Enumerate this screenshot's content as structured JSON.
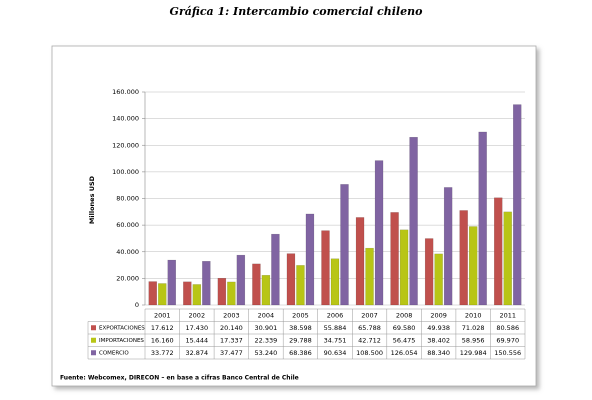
{
  "chart_data": {
    "type": "bar",
    "title": "Gráfica 1: Intercambio comercial chileno",
    "y_label": "Millones USD",
    "source": "Fuente:  Webcomex, DIRECON – en base a cifras Banco Central de Chile",
    "categories": [
      "2001",
      "2002",
      "2003",
      "2004",
      "2005",
      "2006",
      "2007",
      "2008",
      "2009",
      "2010",
      "2011"
    ],
    "series": [
      {
        "name": "EXPORTACIONES",
        "color": "#c0504d",
        "values": [
          17612,
          17430,
          20140,
          30901,
          38598,
          55884,
          65788,
          69580,
          49938,
          71028,
          80586
        ],
        "value_labels": [
          "17.612",
          "17.430",
          "20.140",
          "30.901",
          "38.598",
          "55.884",
          "65.788",
          "69.580",
          "49.938",
          "71.028",
          "80.586"
        ]
      },
      {
        "name": "IMPORTACIONES",
        "color": "#b8c516",
        "values": [
          16160,
          15444,
          17337,
          22339,
          29788,
          34751,
          42712,
          56475,
          38402,
          58956,
          69970
        ],
        "value_labels": [
          "16.160",
          "15.444",
          "17.337",
          "22.339",
          "29.788",
          "34.751",
          "42.712",
          "56.475",
          "38.402",
          "58.956",
          "69.970"
        ]
      },
      {
        "name": "COMERCIO",
        "color": "#8064a2",
        "values": [
          33772,
          32874,
          37477,
          53240,
          68386,
          90634,
          108500,
          126054,
          88340,
          129984,
          150556
        ],
        "value_labels": [
          "33.772",
          "32.874",
          "37.477",
          "53.240",
          "68.386",
          "90.634",
          "108.500",
          "126.054",
          "88.340",
          "129.984",
          "150.556"
        ]
      }
    ],
    "ylim": [
      0,
      160000
    ],
    "yticks": [
      0,
      {
        "value": 20000,
        "label": "20.000"
      },
      {
        "value": 40000,
        "label": "40.000"
      },
      {
        "value": 60000,
        "label": "60.000"
      },
      {
        "value": 80000,
        "label": "80.000"
      },
      {
        "value": 100000,
        "label": "100.000"
      },
      {
        "value": 120000,
        "label": "120.000"
      },
      {
        "value": 140000,
        "label": "140.000"
      },
      {
        "value": 160000,
        "label": "160.000"
      }
    ],
    "grid": true
  }
}
